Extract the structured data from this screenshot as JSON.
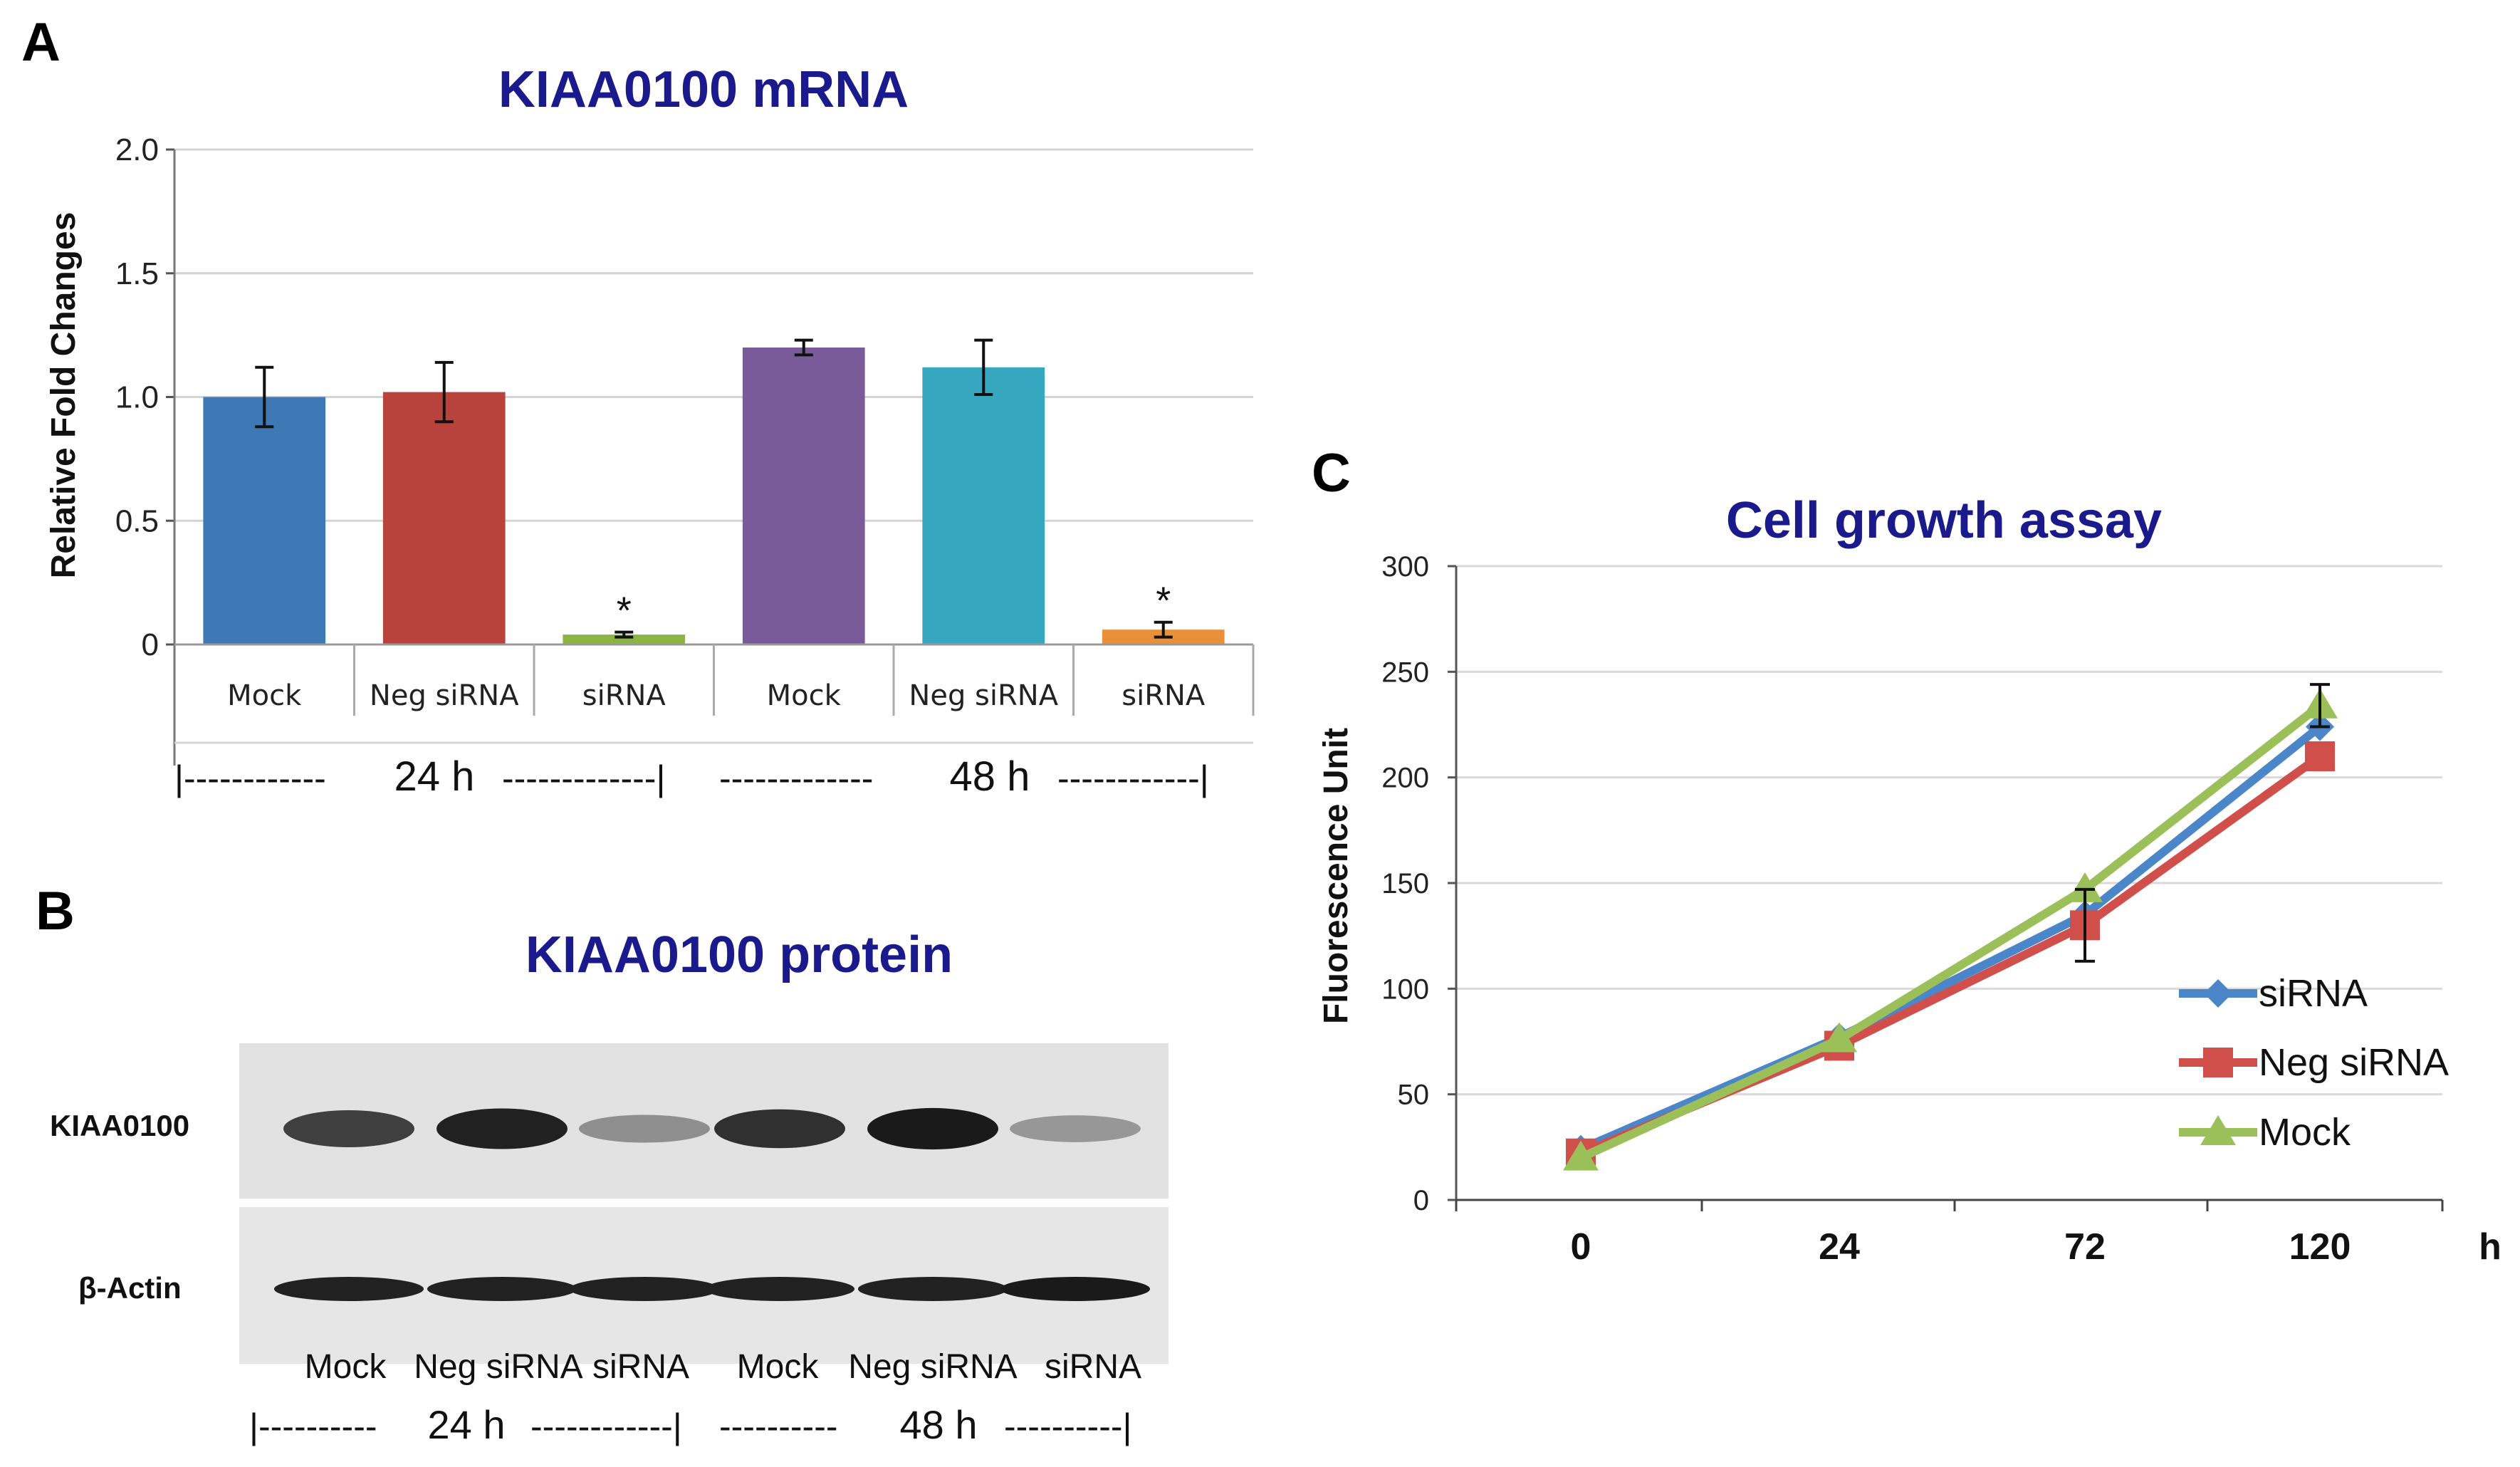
{
  "panels": {
    "a": "A",
    "b": "B",
    "c": "C"
  },
  "chart_data": [
    {
      "type": "bar",
      "panel": "A",
      "title": "KIAA0100 mRNA",
      "ylabel": "Relative Fold Changes",
      "ylim": [
        0,
        2.0
      ],
      "yticks": [
        "0",
        "0.5",
        "1.0",
        "1.5",
        "2.0"
      ],
      "ytick_values": [
        0,
        0.5,
        1.0,
        1.5,
        2.0
      ],
      "categories": [
        "Mock",
        "Neg siRNA",
        "siRNA",
        "Mock",
        "Neg siRNA",
        "siRNA"
      ],
      "values": [
        1.0,
        1.02,
        0.04,
        1.2,
        1.12,
        0.06
      ],
      "errors": [
        0.12,
        0.12,
        0.01,
        0.03,
        0.11,
        0.03
      ],
      "significance": [
        "",
        "",
        "*",
        "",
        "",
        "*"
      ],
      "colors": [
        "#3f79b5",
        "#b8423c",
        "#8cb440",
        "#7a5b9a",
        "#36a7bf",
        "#e8903a"
      ],
      "groups": [
        {
          "label": "24 h",
          "left_dash": "|------------",
          "right_dash": "-------------|"
        },
        {
          "label": "48 h",
          "left_dash": "-------------",
          "right_dash": "------------|"
        }
      ]
    },
    {
      "type": "line",
      "panel": "C",
      "title": "Cell growth assay",
      "ylabel": "Fluorescence Unit",
      "xlabel": "h",
      "x": [
        "0",
        "24",
        "72",
        "120"
      ],
      "ylim": [
        0,
        300
      ],
      "yticks": [
        "0",
        "50",
        "100",
        "150",
        "200",
        "250",
        "300"
      ],
      "ytick_values": [
        0,
        50,
        100,
        150,
        200,
        250,
        300
      ],
      "series": [
        {
          "name": "siRNA",
          "values": [
            24,
            77,
            135,
            224
          ],
          "color": "#4a86c8",
          "marker": "diamond"
        },
        {
          "name": "Neg siRNA",
          "values": [
            22,
            73,
            130,
            210
          ],
          "color": "#d14f4a",
          "marker": "square",
          "errors": [
            0,
            0,
            17,
            0
          ]
        },
        {
          "name": "Mock",
          "values": [
            20,
            76,
            147,
            234
          ],
          "color": "#9bc05a",
          "marker": "triangle",
          "errors": [
            0,
            0,
            0,
            10
          ]
        }
      ],
      "legend_position": "right"
    }
  ],
  "blot": {
    "title": "KIAA0100 protein",
    "rows": [
      "KIAA0100",
      "β-Actin"
    ],
    "lanes": [
      "Mock",
      "Neg siRNA",
      "siRNA",
      "Mock",
      "Neg siRNA",
      "siRNA"
    ],
    "kiaa_intensity": [
      0.78,
      0.92,
      0.42,
      0.85,
      0.95,
      0.38
    ],
    "actin_intensity": [
      0.92,
      0.92,
      0.92,
      0.92,
      0.92,
      0.95
    ],
    "groups": [
      {
        "label": "24 h",
        "left_dash": "|----------",
        "right_dash": "------------|"
      },
      {
        "label": "48 h",
        "left_dash": "----------",
        "right_dash": "----------|"
      }
    ]
  }
}
